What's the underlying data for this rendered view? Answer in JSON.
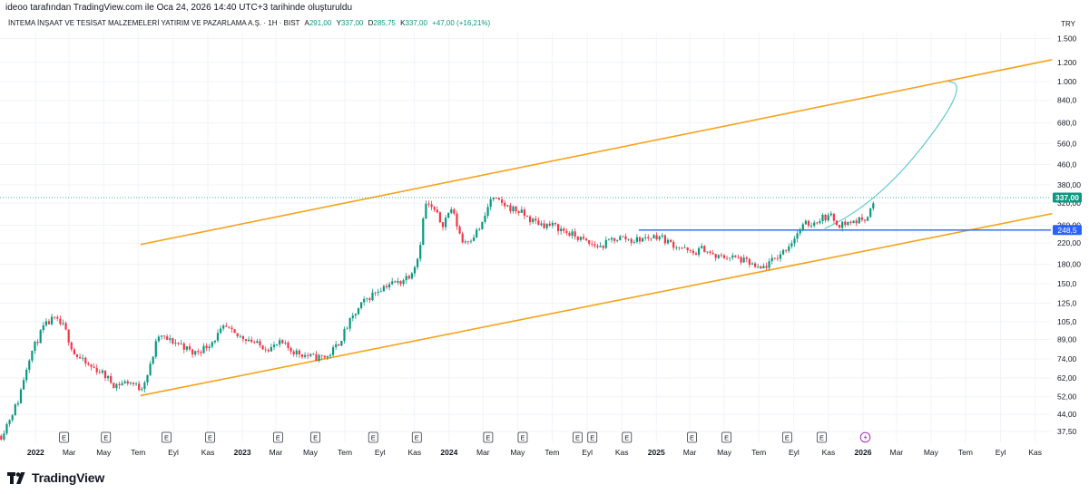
{
  "header": {
    "attribution": "ideoo tarafından TradingView.com ile Oca 24, 2026 14:40 UTC+3 tarihinde oluşturuldu"
  },
  "legend": {
    "symbol": "İNTEMA İNŞAAT VE TESİSAT MALZEMELERİ YATIRIM VE PAZARLAMA A.Ş. · 1H · BIST",
    "open_label": "A",
    "open": "291,00",
    "high_label": "Y",
    "high": "337,00",
    "low_label": "D",
    "low": "285,75",
    "close_label": "K",
    "close": "337,00",
    "change": "+47,00 (+16,21%)"
  },
  "currency": "TRY",
  "brand": {
    "name": "TradingView"
  },
  "colors": {
    "up": "#089981",
    "down": "#f23645",
    "channel": "#f6a21a",
    "projection": "#5fc6d3",
    "level": "#2962ff",
    "grid": "#f0f3fa",
    "text": "#131722"
  },
  "chart_data": {
    "type": "candlestick",
    "scale": "log",
    "last_price_label": "337,00",
    "level_label": "248,5",
    "y_ticks": [
      "1.500",
      "1.200",
      "1.000",
      "840,0",
      "680,0",
      "560,0",
      "460,0",
      "380,00",
      "320,00",
      "260,00",
      "220,00",
      "180,00",
      "150,0",
      "125,0",
      "105,0",
      "89,00",
      "74,00",
      "62,00",
      "52,00",
      "44,00",
      "37,50"
    ],
    "y_tick_values": [
      1500,
      1200,
      1000,
      840,
      680,
      560,
      460,
      380,
      320,
      260,
      220,
      180,
      150,
      125,
      105,
      89,
      74,
      62,
      52,
      44,
      37.5
    ],
    "x_ticks": [
      {
        "label": "2022",
        "date": "2022-01",
        "bold": true
      },
      {
        "label": "Mar",
        "date": "2022-03"
      },
      {
        "label": "May",
        "date": "2022-05"
      },
      {
        "label": "Tem",
        "date": "2022-07"
      },
      {
        "label": "Eyl",
        "date": "2022-09"
      },
      {
        "label": "Kas",
        "date": "2022-11"
      },
      {
        "label": "2023",
        "date": "2023-01",
        "bold": true
      },
      {
        "label": "Mar",
        "date": "2023-03"
      },
      {
        "label": "May",
        "date": "2023-05"
      },
      {
        "label": "Tem",
        "date": "2023-07"
      },
      {
        "label": "Eyl",
        "date": "2023-09"
      },
      {
        "label": "Kas",
        "date": "2023-11"
      },
      {
        "label": "2024",
        "date": "2024-01",
        "bold": true
      },
      {
        "label": "Mar",
        "date": "2024-03"
      },
      {
        "label": "May",
        "date": "2024-05"
      },
      {
        "label": "Tem",
        "date": "2024-07"
      },
      {
        "label": "Eyl",
        "date": "2024-09"
      },
      {
        "label": "Kas",
        "date": "2024-11"
      },
      {
        "label": "2025",
        "date": "2025-01",
        "bold": true
      },
      {
        "label": "Mar",
        "date": "2025-03"
      },
      {
        "label": "May",
        "date": "2025-05"
      },
      {
        "label": "Tem",
        "date": "2025-07"
      },
      {
        "label": "Eyl",
        "date": "2025-09"
      },
      {
        "label": "Kas",
        "date": "2025-11"
      },
      {
        "label": "2026",
        "date": "2026-01",
        "bold": true
      },
      {
        "label": "Mar",
        "date": "2026-03"
      },
      {
        "label": "May",
        "date": "2026-05"
      },
      {
        "label": "Tem",
        "date": "2026-07"
      },
      {
        "label": "Eyl",
        "date": "2026-09"
      },
      {
        "label": "Kas",
        "date": "2026-11"
      }
    ],
    "earnings_markers": [
      "2022-02-20",
      "2022-05-05",
      "2022-08-20",
      "2022-11-05",
      "2023-03-05",
      "2023-05-10",
      "2023-08-20",
      "2023-11-05",
      "2024-03-10",
      "2024-05-10",
      "2024-08-15",
      "2024-09-10",
      "2024-11-10",
      "2025-03-05",
      "2025-05-05",
      "2025-08-20",
      "2025-10-20"
    ],
    "dividend_marker": "2026-01-05",
    "price_path": [
      [
        "2021-11-01",
        36
      ],
      [
        "2021-12-01",
        50
      ],
      [
        "2021-12-20",
        75
      ],
      [
        "2022-01-15",
        100
      ],
      [
        "2022-02-01",
        108
      ],
      [
        "2022-02-20",
        100
      ],
      [
        "2022-03-10",
        78
      ],
      [
        "2022-04-01",
        70
      ],
      [
        "2022-04-25",
        66
      ],
      [
        "2022-05-20",
        58
      ],
      [
        "2022-06-15",
        60
      ],
      [
        "2022-07-05",
        56
      ],
      [
        "2022-07-20",
        66
      ],
      [
        "2022-08-05",
        92
      ],
      [
        "2022-08-25",
        88
      ],
      [
        "2022-09-15",
        85
      ],
      [
        "2022-10-05",
        78
      ],
      [
        "2022-10-25",
        82
      ],
      [
        "2022-11-10",
        88
      ],
      [
        "2022-12-01",
        100
      ],
      [
        "2022-12-20",
        92
      ],
      [
        "2023-01-10",
        90
      ],
      [
        "2023-01-30",
        84
      ],
      [
        "2023-02-20",
        82
      ],
      [
        "2023-03-10",
        86
      ],
      [
        "2023-03-30",
        80
      ],
      [
        "2023-04-20",
        77
      ],
      [
        "2023-05-10",
        75
      ],
      [
        "2023-06-01",
        76
      ],
      [
        "2023-06-20",
        86
      ],
      [
        "2023-07-10",
        105
      ],
      [
        "2023-08-01",
        125
      ],
      [
        "2023-08-25",
        140
      ],
      [
        "2023-09-15",
        150
      ],
      [
        "2023-10-05",
        152
      ],
      [
        "2023-10-25",
        165
      ],
      [
        "2023-11-08",
        195
      ],
      [
        "2023-11-20",
        320
      ],
      [
        "2023-12-05",
        300
      ],
      [
        "2023-12-20",
        262
      ],
      [
        "2024-01-05",
        305
      ],
      [
        "2024-01-25",
        222
      ],
      [
        "2024-02-10",
        232
      ],
      [
        "2024-02-28",
        260
      ],
      [
        "2024-03-15",
        335
      ],
      [
        "2024-03-30",
        322
      ],
      [
        "2024-04-15",
        308
      ],
      [
        "2024-05-05",
        295
      ],
      [
        "2024-05-25",
        272
      ],
      [
        "2024-06-15",
        262
      ],
      [
        "2024-07-05",
        258
      ],
      [
        "2024-07-25",
        244
      ],
      [
        "2024-08-15",
        232
      ],
      [
        "2024-09-05",
        218
      ],
      [
        "2024-09-25",
        212
      ],
      [
        "2024-10-15",
        228
      ],
      [
        "2024-11-01",
        232
      ],
      [
        "2024-11-20",
        225
      ],
      [
        "2024-12-10",
        230
      ],
      [
        "2025-01-05",
        236
      ],
      [
        "2025-01-25",
        220
      ],
      [
        "2025-02-15",
        210
      ],
      [
        "2025-03-05",
        198
      ],
      [
        "2025-03-25",
        210
      ],
      [
        "2025-04-15",
        192
      ],
      [
        "2025-05-05",
        194
      ],
      [
        "2025-05-25",
        190
      ],
      [
        "2025-06-15",
        182
      ],
      [
        "2025-07-01",
        170
      ],
      [
        "2025-07-20",
        182
      ],
      [
        "2025-08-10",
        200
      ],
      [
        "2025-08-25",
        218
      ],
      [
        "2025-09-05",
        238
      ],
      [
        "2025-09-20",
        262
      ],
      [
        "2025-10-05",
        265
      ],
      [
        "2025-10-20",
        280
      ],
      [
        "2025-11-05",
        282
      ],
      [
        "2025-11-20",
        262
      ],
      [
        "2025-12-05",
        266
      ],
      [
        "2025-12-25",
        272
      ],
      [
        "2026-01-10",
        285
      ],
      [
        "2026-01-24",
        337
      ]
    ],
    "drawings": [
      {
        "name": "channel-upper",
        "kind": "trendline",
        "from": [
          "2022-07-05",
          217
        ],
        "to": [
          "2026-12-01",
          1230
        ]
      },
      {
        "name": "channel-lower",
        "kind": "trendline",
        "from": [
          "2022-07-05",
          52.5
        ],
        "to": [
          "2026-12-01",
          290
        ]
      },
      {
        "name": "horizontal-level",
        "kind": "horizontal",
        "from": [
          "2024-12-01",
          248.5
        ],
        "to": "right-edge"
      },
      {
        "name": "projection-curve",
        "kind": "curve",
        "points": [
          [
            "2025-10-25",
            252
          ],
          [
            "2026-01-25",
            312
          ],
          [
            "2026-04-20",
            560
          ],
          [
            "2026-06-01",
            1000
          ]
        ]
      }
    ]
  }
}
